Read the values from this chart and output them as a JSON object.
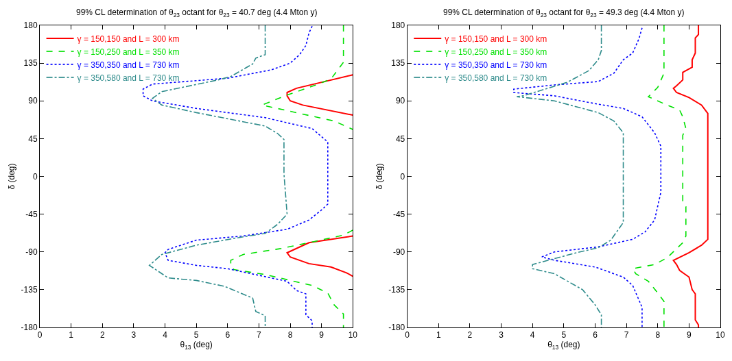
{
  "chart_data": [
    {
      "type": "line",
      "title": "99% CL determination of θ$_{23}$ octant for θ$_{23}$ = 40.7 deg (4.4 Mton y)",
      "xlabel": "θ$_{13}$ (deg)",
      "ylabel": "δ (deg)",
      "xlim": [
        0,
        10
      ],
      "ylim": [
        -180,
        180
      ],
      "xticks": [
        0,
        1,
        2,
        3,
        4,
        5,
        6,
        7,
        8,
        9,
        10
      ],
      "yticks": [
        -180,
        -135,
        -90,
        -45,
        0,
        45,
        90,
        135,
        180
      ],
      "legend": "top left",
      "marker": "none",
      "series": [
        {
          "name": "γ = 150,150 and L = 300 km",
          "color": "#ff0000",
          "line_style": "solid",
          "x": [
            10,
            8.2,
            7.9,
            7.9,
            8.0,
            8.4,
            10,
            null,
            10,
            8.6,
            7.9,
            8.0,
            8.6,
            9.3,
            9.8,
            10
          ],
          "values": [
            121,
            105,
            100,
            96,
            90,
            85,
            73,
            null,
            -71,
            -79,
            -91,
            -96,
            -104,
            -108,
            -115,
            -119
          ]
        },
        {
          "name": "γ = 150,250 and L = 350 km",
          "color": "#00e000",
          "line_style": "dashed",
          "x": [
            9.7,
            9.7,
            9.3,
            8.9,
            7.9,
            7.1,
            9.4,
            10,
            null,
            10,
            9.7,
            8.6,
            7.7,
            6.5,
            6.1,
            6.1,
            6.2,
            7.2,
            8.7,
            9.2,
            9.4,
            9.7,
            9.7
          ],
          "values": [
            180,
            136,
            116,
            110,
            97,
            85,
            66,
            56,
            null,
            -64,
            -70,
            -79,
            -86,
            -93,
            -100,
            -106,
            -111,
            -117,
            -130,
            -139,
            -153,
            -164,
            -180
          ]
        },
        {
          "name": "γ = 350,350 and L = 730 km",
          "color": "#0000ff",
          "line_style": "dotted",
          "x": [
            8.7,
            8.6,
            8.5,
            8.3,
            8.0,
            7.4,
            6.0,
            3.6,
            3.3,
            3.3,
            3.6,
            5.0,
            7.2,
            8.7,
            9.2,
            9.2,
            9.2,
            9.2,
            9.0,
            8.6,
            7.9,
            6.5,
            5.0,
            4.1,
            4.0,
            4.1,
            5.0,
            6.0,
            7.9,
            8.2,
            8.5,
            8.5,
            8.7,
            8.7
          ],
          "values": [
            179,
            171,
            156,
            145,
            135,
            127,
            117,
            110,
            104,
            96,
            90,
            81,
            70,
            57,
            41,
            27,
            0,
            -33,
            -40,
            -52,
            -63,
            -71,
            -76,
            -87,
            -91,
            -100,
            -106,
            -110,
            -125,
            -136,
            -140,
            -165,
            -172,
            -180
          ]
        },
        {
          "name": "γ = 350,580 and L = 730 km",
          "color": "#2e8b8b",
          "line_style": "dashdot",
          "x": [
            7.2,
            7.2,
            6.9,
            6.8,
            6.1,
            5.7,
            3.9,
            3.6,
            3.9,
            5.0,
            7.2,
            7.6,
            7.8,
            7.8,
            7.9,
            7.6,
            7.2,
            6.5,
            5.0,
            3.9,
            3.5,
            4.1,
            5.0,
            5.9,
            6.8,
            6.9,
            7.2,
            7.2
          ],
          "values": [
            180,
            145,
            141,
            134,
            119,
            115,
            101,
            93,
            85,
            76,
            60,
            51,
            44,
            3,
            -45,
            -57,
            -68,
            -72,
            -82,
            -93,
            -106,
            -121,
            -124,
            -131,
            -145,
            -161,
            -166,
            -180
          ]
        }
      ]
    },
    {
      "type": "line",
      "title": "99% CL determination of θ$_{23}$ octant for θ$_{23}$ = 49.3 deg (4.4 Mton y)",
      "xlabel": "θ$_{13}$ (deg)",
      "ylabel": "δ (deg)",
      "xlim": [
        0,
        10
      ],
      "ylim": [
        -180,
        180
      ],
      "xticks": [
        0,
        1,
        2,
        3,
        4,
        5,
        6,
        7,
        8,
        9,
        10
      ],
      "yticks": [
        -180,
        -135,
        -90,
        -45,
        0,
        45,
        90,
        135,
        180
      ],
      "legend": "top left",
      "marker": "none",
      "series": [
        {
          "name": "γ = 150,150 and L = 300 km",
          "color": "#ff0000",
          "line_style": "solid",
          "x": [
            9.3,
            9.3,
            9.2,
            9.2,
            9.1,
            9.1,
            8.8,
            8.8,
            8.6,
            8.5,
            8.6,
            9.0,
            9.4,
            9.6,
            9.6,
            9.6,
            9.4,
            9.0,
            8.5,
            8.6,
            8.7,
            9.0,
            9.1,
            9.2,
            9.2,
            9.3,
            9.3
          ],
          "values": [
            180,
            169,
            165,
            147,
            139,
            130,
            124,
            115,
            108,
            105,
            100,
            94,
            85,
            75,
            0,
            -75,
            -82,
            -91,
            -100,
            -105,
            -112,
            -120,
            -135,
            -140,
            -171,
            -177,
            -180
          ]
        },
        {
          "name": "γ = 150,250 and L = 350 km",
          "color": "#00e000",
          "line_style": "dashed",
          "x": [
            8.2,
            8.2,
            8.0,
            7.7,
            8.3,
            8.7,
            8.8,
            8.9,
            8.8,
            8.8,
            8.8,
            8.9,
            8.9,
            8.8,
            8.3,
            7.9,
            7.2,
            7.3,
            7.7,
            8.0,
            8.2,
            8.2
          ],
          "values": [
            180,
            123,
            106,
            95,
            85,
            79,
            71,
            57,
            49,
            0,
            -30,
            -36,
            -71,
            -79,
            -97,
            -105,
            -110,
            -116,
            -125,
            -139,
            -149,
            -180
          ]
        },
        {
          "name": "γ = 350,350 and L = 730 km",
          "color": "#0000ff",
          "line_style": "dotted",
          "x": [
            7.5,
            7.4,
            7.2,
            6.9,
            6.6,
            6.1,
            4.7,
            3.4,
            3.4,
            4.7,
            6.1,
            6.9,
            7.5,
            7.9,
            8.1,
            8.1,
            8.1,
            7.9,
            7.6,
            7.2,
            6.1,
            4.7,
            4.3,
            4.7,
            6.0,
            6.9,
            7.2,
            7.5,
            7.5
          ],
          "values": [
            177,
            164,
            147,
            139,
            123,
            113,
            109,
            104,
            100,
            96,
            86,
            81,
            71,
            52,
            36,
            0,
            -19,
            -52,
            -66,
            -75,
            -84,
            -90,
            -96,
            -100,
            -108,
            -120,
            -130,
            -156,
            -180
          ]
        },
        {
          "name": "γ = 350,580 and L = 730 km",
          "color": "#2e8b8b",
          "line_style": "dashdot",
          "x": [
            6.2,
            6.2,
            6.1,
            5.8,
            5.1,
            3.7,
            3.5,
            4.7,
            6.1,
            6.6,
            6.9,
            6.9,
            6.9,
            6.9,
            6.9,
            6.5,
            6.1,
            5.4,
            4.0,
            4.0,
            4.7,
            5.6,
            6.0,
            6.2,
            6.2
          ],
          "values": [
            180,
            150,
            139,
            126,
            112,
            96,
            95,
            90,
            76,
            66,
            52,
            44,
            0,
            -51,
            -55,
            -76,
            -85,
            -91,
            -105,
            -110,
            -116,
            -135,
            -153,
            -165,
            -180
          ]
        }
      ]
    }
  ]
}
